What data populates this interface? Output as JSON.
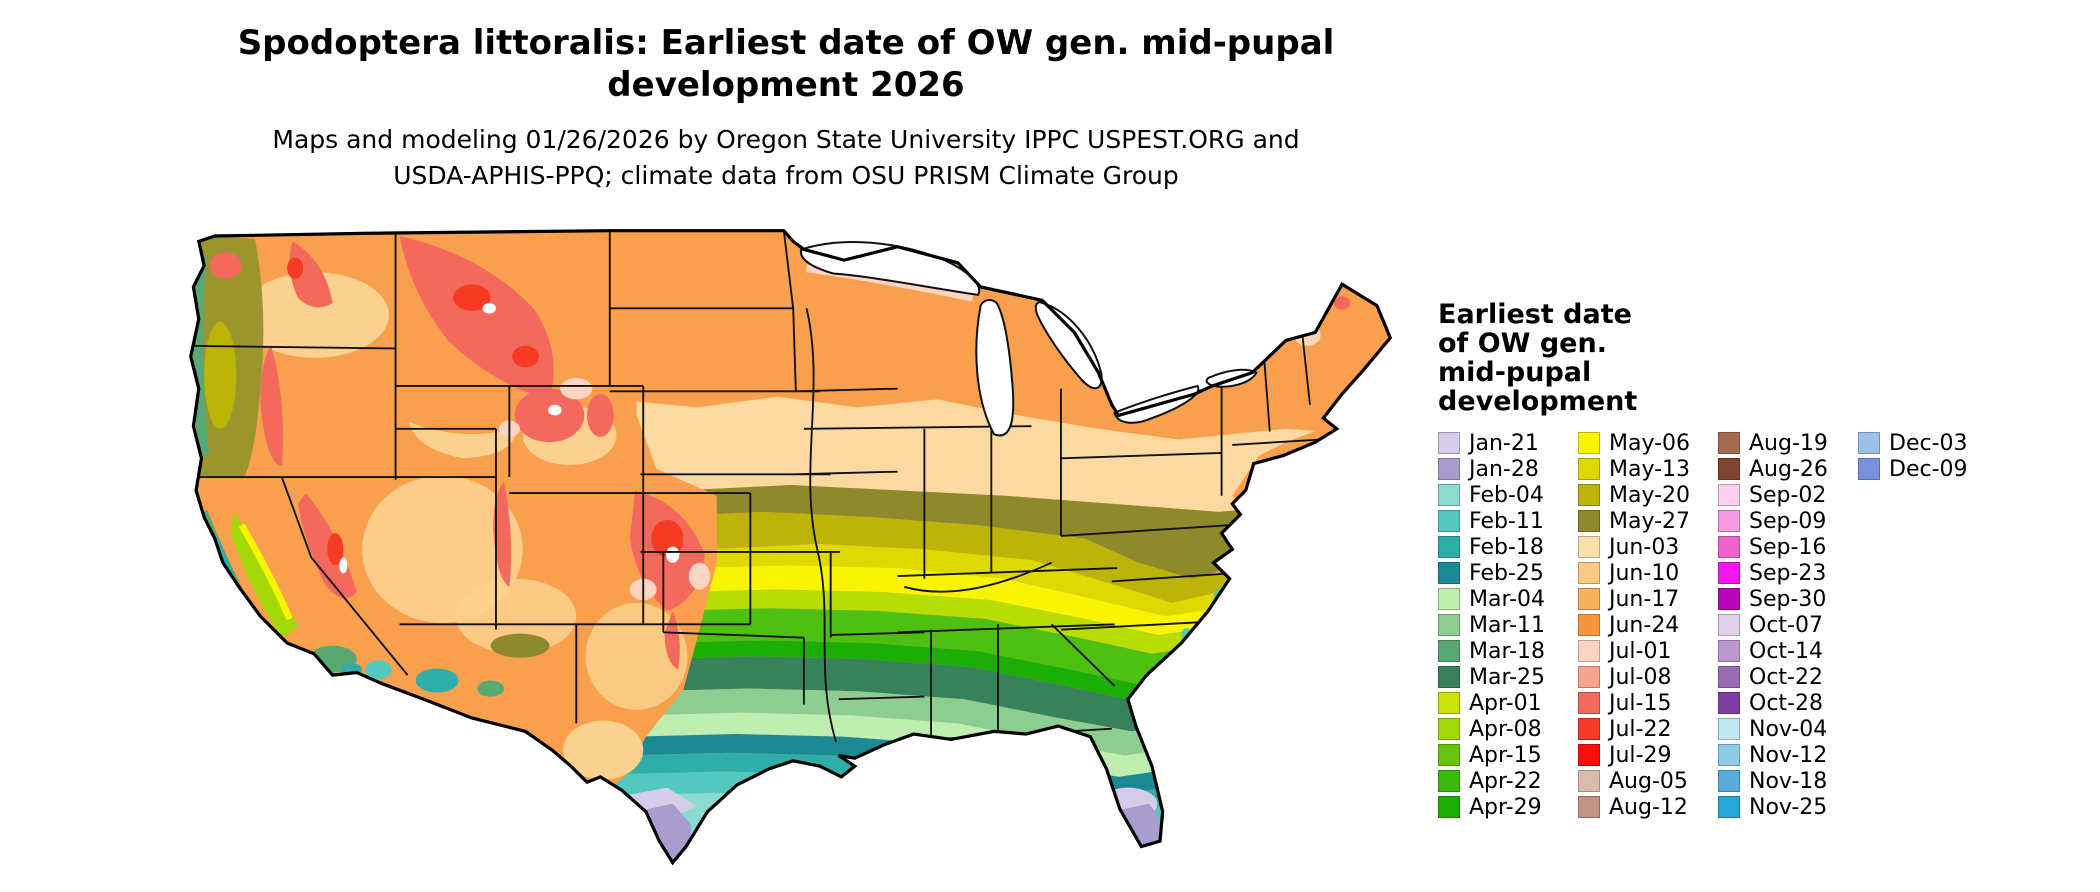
{
  "title_lines": [
    "Spodoptera littoralis: Earliest date of OW gen. mid-pupal",
    "development 2026"
  ],
  "subtitle_lines": [
    "Maps and modeling 01/26/2026 by Oregon State University IPPC USPEST.ORG and",
    "USDA-APHIS-PPQ; climate data from OSU PRISM Climate Group"
  ],
  "legend": {
    "title_lines": [
      "Earliest date",
      "of OW gen.",
      "mid-pupal",
      "development"
    ],
    "columns": [
      [
        {
          "label": "Jan-21",
          "color": "#d5cde9"
        },
        {
          "label": "Jan-28",
          "color": "#a99dce"
        },
        {
          "label": "Feb-04",
          "color": "#8adcd1"
        },
        {
          "label": "Feb-11",
          "color": "#52c8be"
        },
        {
          "label": "Feb-18",
          "color": "#2fada9"
        },
        {
          "label": "Feb-25",
          "color": "#1b8a94"
        },
        {
          "label": "Mar-04",
          "color": "#bfeeb1"
        },
        {
          "label": "Mar-11",
          "color": "#8ecd92"
        },
        {
          "label": "Mar-18",
          "color": "#57a873"
        },
        {
          "label": "Mar-25",
          "color": "#37815b"
        },
        {
          "label": "Apr-01",
          "color": "#cbe207"
        },
        {
          "label": "Apr-08",
          "color": "#a4d707"
        },
        {
          "label": "Apr-15",
          "color": "#69c40e"
        },
        {
          "label": "Apr-22",
          "color": "#3cba0b"
        },
        {
          "label": "Apr-29",
          "color": "#1dae06"
        }
      ],
      [
        {
          "label": "May-06",
          "color": "#f8f402"
        },
        {
          "label": "May-13",
          "color": "#dfd903"
        },
        {
          "label": "May-20",
          "color": "#bdb40a"
        },
        {
          "label": "May-27",
          "color": "#8e892b"
        },
        {
          "label": "Jun-03",
          "color": "#fadfad"
        },
        {
          "label": "Jun-10",
          "color": "#fbca82"
        },
        {
          "label": "Jun-17",
          "color": "#faaf5b"
        },
        {
          "label": "Jun-24",
          "color": "#f79440"
        },
        {
          "label": "Jul-01",
          "color": "#fbd5c1"
        },
        {
          "label": "Jul-08",
          "color": "#f8a290"
        },
        {
          "label": "Jul-15",
          "color": "#f4695e"
        },
        {
          "label": "Jul-22",
          "color": "#f63a23"
        },
        {
          "label": "Jul-29",
          "color": "#fb0f0c"
        },
        {
          "label": "Aug-05",
          "color": "#dabcad"
        },
        {
          "label": "Aug-12",
          "color": "#c29384"
        }
      ],
      [
        {
          "label": "Aug-19",
          "color": "#a56b51"
        },
        {
          "label": "Aug-26",
          "color": "#7e4530"
        },
        {
          "label": "Sep-02",
          "color": "#f9cfec"
        },
        {
          "label": "Sep-09",
          "color": "#f59ade"
        },
        {
          "label": "Sep-16",
          "color": "#ee63cd"
        },
        {
          "label": "Sep-23",
          "color": "#f217ee"
        },
        {
          "label": "Sep-30",
          "color": "#bb05b8"
        },
        {
          "label": "Oct-07",
          "color": "#e2d2e9"
        },
        {
          "label": "Oct-14",
          "color": "#bb98cd"
        },
        {
          "label": "Oct-22",
          "color": "#9a6cb4"
        },
        {
          "label": "Oct-28",
          "color": "#7d40a2"
        },
        {
          "label": "Nov-04",
          "color": "#bfe7ef"
        },
        {
          "label": "Nov-12",
          "color": "#8ccce7"
        },
        {
          "label": "Nov-18",
          "color": "#57acd9"
        },
        {
          "label": "Nov-25",
          "color": "#27a5d6"
        }
      ],
      [
        {
          "label": "Dec-03",
          "color": "#9cc2e9"
        },
        {
          "label": "Dec-09",
          "color": "#7b8fe0"
        }
      ]
    ]
  }
}
